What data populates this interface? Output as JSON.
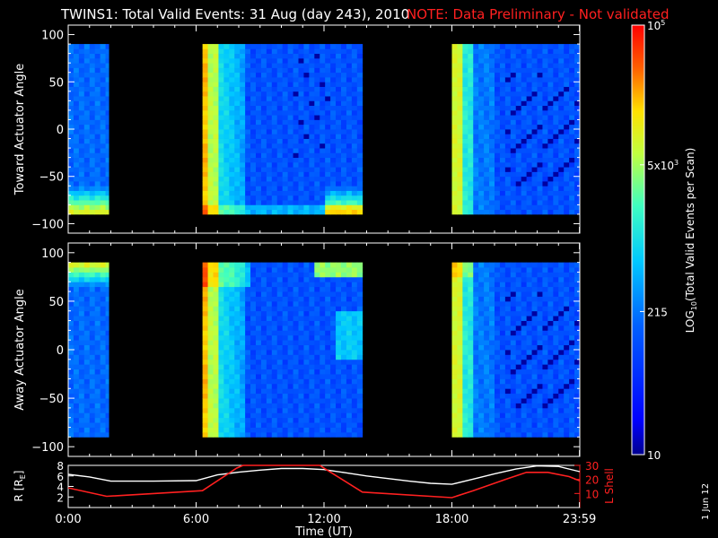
{
  "header": {
    "title": "TWINS1: Total Valid Events: 31 Aug (day 243), 2010",
    "note": "NOTE: Data Preliminary - Not validated"
  },
  "colors": {
    "background": "#000000",
    "axes": "#ffffff",
    "note": "#ff2020",
    "r_line": "#ffffff",
    "lshell_line": "#ff2020",
    "colormap": [
      "#00008f",
      "#0000ff",
      "#0060ff",
      "#00c8ff",
      "#40ffc0",
      "#c0ff40",
      "#ffe000",
      "#ff6000",
      "#ff0000"
    ]
  },
  "chart_data": [
    {
      "type": "heatmap",
      "name": "toward",
      "ylabel": "Toward Actuator Angle",
      "xlabel": "",
      "x_range_hours": [
        0,
        24
      ],
      "ylim": [
        -110,
        110
      ],
      "yticks": [
        100,
        50,
        0,
        -50,
        -100
      ],
      "coverage_hours": [
        [
          0.0,
          1.9
        ],
        [
          6.3,
          13.8
        ],
        [
          18.0,
          24.0
        ]
      ],
      "angle_coverage": [
        -90,
        90
      ],
      "color_scale": "log"
    },
    {
      "type": "heatmap",
      "name": "away",
      "ylabel": "Away Actuator Angle",
      "xlabel": "",
      "x_range_hours": [
        0,
        24
      ],
      "ylim": [
        -110,
        110
      ],
      "yticks": [
        100,
        50,
        0,
        -50,
        -100
      ],
      "coverage_hours": [
        [
          0.0,
          1.9
        ],
        [
          6.3,
          13.8
        ],
        [
          18.0,
          24.0
        ]
      ],
      "angle_coverage": [
        -90,
        90
      ],
      "color_scale": "log"
    },
    {
      "type": "line",
      "name": "orbit",
      "xlabel": "Time (UT)",
      "ylabel_left": "R [R",
      "ylabel_left_sub": "E",
      "ylabel_left_close": "]",
      "ylabel_right": "L Shell",
      "left_ylim": [
        0,
        8
      ],
      "left_yticks": [
        2,
        4,
        6,
        8
      ],
      "right_ylim": [
        0,
        30
      ],
      "right_yticks": [
        10,
        20,
        30
      ],
      "xticks": [
        {
          "hour": 0,
          "label": "0:00"
        },
        {
          "hour": 6,
          "label": "6:00"
        },
        {
          "hour": 12,
          "label": "12:00"
        },
        {
          "hour": 18,
          "label": "18:00"
        },
        {
          "hour": 23.983,
          "label": "23:59"
        }
      ],
      "series": [
        {
          "name": "R",
          "axis": "left",
          "x": [
            0,
            1,
            2,
            4,
            6,
            7,
            8,
            9,
            10,
            11,
            12,
            13,
            14,
            15,
            16,
            17,
            18,
            19,
            20,
            21,
            22,
            23,
            24
          ],
          "values": [
            6.3,
            5.8,
            5.0,
            5.0,
            5.1,
            6.2,
            6.7,
            7.1,
            7.4,
            7.4,
            7.2,
            6.6,
            6.0,
            5.5,
            5.0,
            4.6,
            4.4,
            5.4,
            6.4,
            7.3,
            7.9,
            7.8,
            6.8
          ]
        },
        {
          "name": "L Shell",
          "axis": "right",
          "x": [
            0,
            1.8,
            6.3,
            7.9,
            8.2,
            11.8,
            12.0,
            13.8,
            18.0,
            19.0,
            20.5,
            21.5,
            22.5,
            23.5,
            24.0
          ],
          "values": [
            14,
            8,
            12,
            28,
            30,
            30,
            28,
            11,
            7,
            12,
            20,
            25,
            25,
            22,
            19
          ]
        }
      ]
    }
  ],
  "colorbar": {
    "label": "LOG",
    "label_sub": "10",
    "label_rest": "(Total Valid Events per Scan)",
    "ticks": [
      {
        "value": 10,
        "label": "10"
      },
      {
        "value": 215,
        "label": "215"
      },
      {
        "value": 5000,
        "label": "5x10",
        "sup": "3"
      },
      {
        "value": 100000,
        "label": "10",
        "sup": "5"
      }
    ],
    "range": [
      10,
      100000
    ]
  },
  "footer": {
    "date_stamp": "1 Jun 12"
  }
}
